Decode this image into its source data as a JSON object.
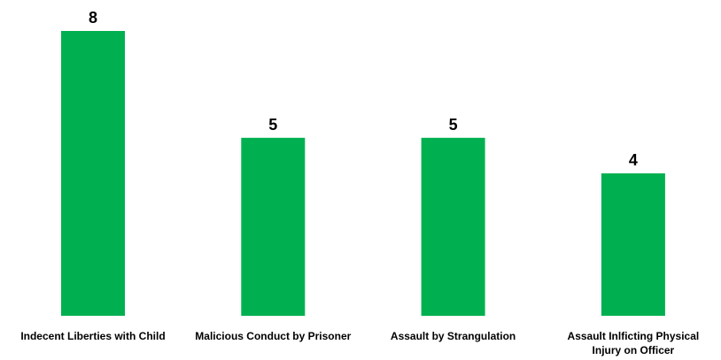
{
  "chart_data": {
    "type": "bar",
    "categories": [
      [
        "Indecent Liberties with Child"
      ],
      [
        "Malicious Conduct by Prisoner"
      ],
      [
        "Assault by Strangulation"
      ],
      [
        "Assault Inlficting Physical",
        "Injury on Officer"
      ]
    ],
    "values": [
      8,
      5,
      5,
      4
    ],
    "data_labels": [
      "8",
      "5",
      "5",
      "4"
    ],
    "ylim": [
      0,
      8
    ],
    "grid": false,
    "legend": "none",
    "bar_color": "#00b050"
  }
}
